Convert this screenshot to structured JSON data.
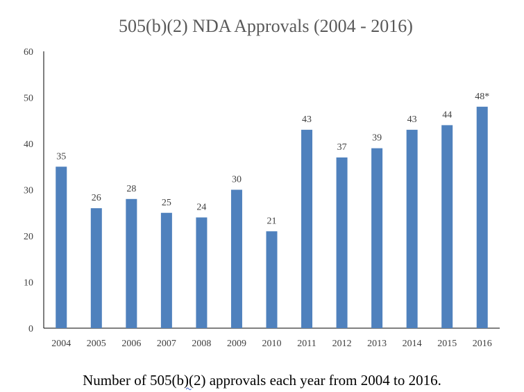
{
  "chart_data": {
    "type": "bar",
    "title": "505(b)(2) NDA Approvals (2004 - 2016)",
    "xlabel": "",
    "ylabel": "",
    "categories": [
      "2004",
      "2005",
      "2006",
      "2007",
      "2008",
      "2009",
      "2010",
      "2011",
      "2012",
      "2013",
      "2014",
      "2015",
      "2016"
    ],
    "values": [
      35,
      26,
      28,
      25,
      24,
      30,
      21,
      43,
      37,
      39,
      43,
      44,
      48
    ],
    "data_labels": [
      "35",
      "26",
      "28",
      "25",
      "24",
      "30",
      "21",
      "43",
      "37",
      "39",
      "43",
      "44",
      "48*"
    ],
    "ylim": [
      0,
      60
    ],
    "yticks": [
      0,
      10,
      20,
      30,
      40,
      50,
      60
    ],
    "grid": false,
    "legend": "none",
    "bar_color": "#4f81bd",
    "axis_color": "#000000"
  },
  "caption": {
    "before": "Number of 505(b",
    "marked": ")(",
    "after": "2) approvals each year from 2004 to 2016."
  }
}
